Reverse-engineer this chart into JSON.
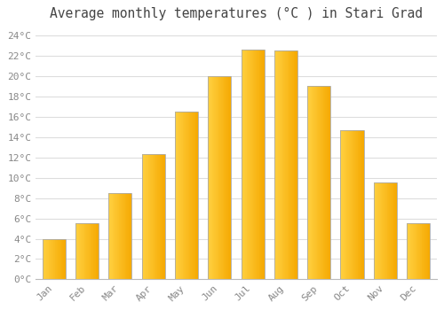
{
  "months": [
    "Jan",
    "Feb",
    "Mar",
    "Apr",
    "May",
    "Jun",
    "Jul",
    "Aug",
    "Sep",
    "Oct",
    "Nov",
    "Dec"
  ],
  "values": [
    4.0,
    5.5,
    8.5,
    12.3,
    16.5,
    20.0,
    22.6,
    22.5,
    19.0,
    14.7,
    9.5,
    5.5
  ],
  "bar_color_light": "#FFD040",
  "bar_color_dark": "#F5A800",
  "bar_edge_color": "#AAAAAA",
  "title": "Average monthly temperatures (°C ) in Stari Grad",
  "title_fontsize": 10.5,
  "ylim": [
    0,
    25
  ],
  "yticks": [
    0,
    2,
    4,
    6,
    8,
    10,
    12,
    14,
    16,
    18,
    20,
    22,
    24
  ],
  "ytick_labels": [
    "0°C",
    "2°C",
    "4°C",
    "6°C",
    "8°C",
    "10°C",
    "12°C",
    "14°C",
    "16°C",
    "18°C",
    "20°C",
    "22°C",
    "24°C"
  ],
  "background_color": "#FFFFFF",
  "grid_color": "#DDDDDD",
  "tick_label_color": "#888888",
  "title_color": "#444444",
  "font_family": "monospace",
  "bar_width": 0.7
}
